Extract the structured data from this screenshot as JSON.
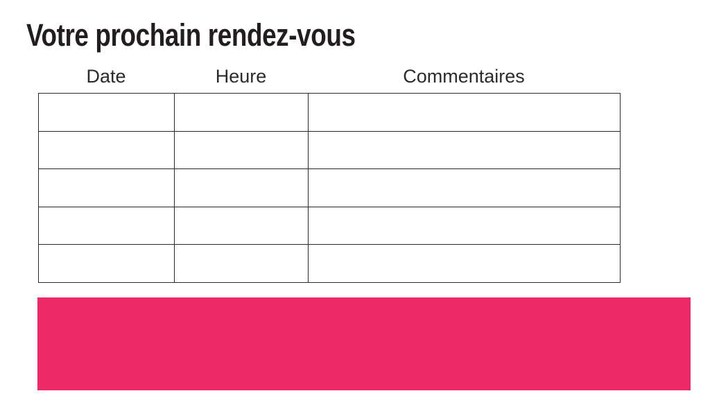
{
  "page": {
    "title": "Votre prochain rendez-vous",
    "background": "#FFFFFF"
  },
  "colors": {
    "accent_pink": "#ED2A67",
    "table_border": "#2A2A2A",
    "title_text": "#221E1F",
    "header_text": "#2B2B2B"
  },
  "table": {
    "columns": [
      {
        "label": "Date"
      },
      {
        "label": "Heure"
      },
      {
        "label": "Commentaires"
      }
    ],
    "rows": [
      [
        "",
        "",
        ""
      ],
      [
        "",
        "",
        ""
      ],
      [
        "",
        "",
        ""
      ],
      [
        "",
        "",
        ""
      ],
      [
        "",
        "",
        ""
      ]
    ]
  }
}
